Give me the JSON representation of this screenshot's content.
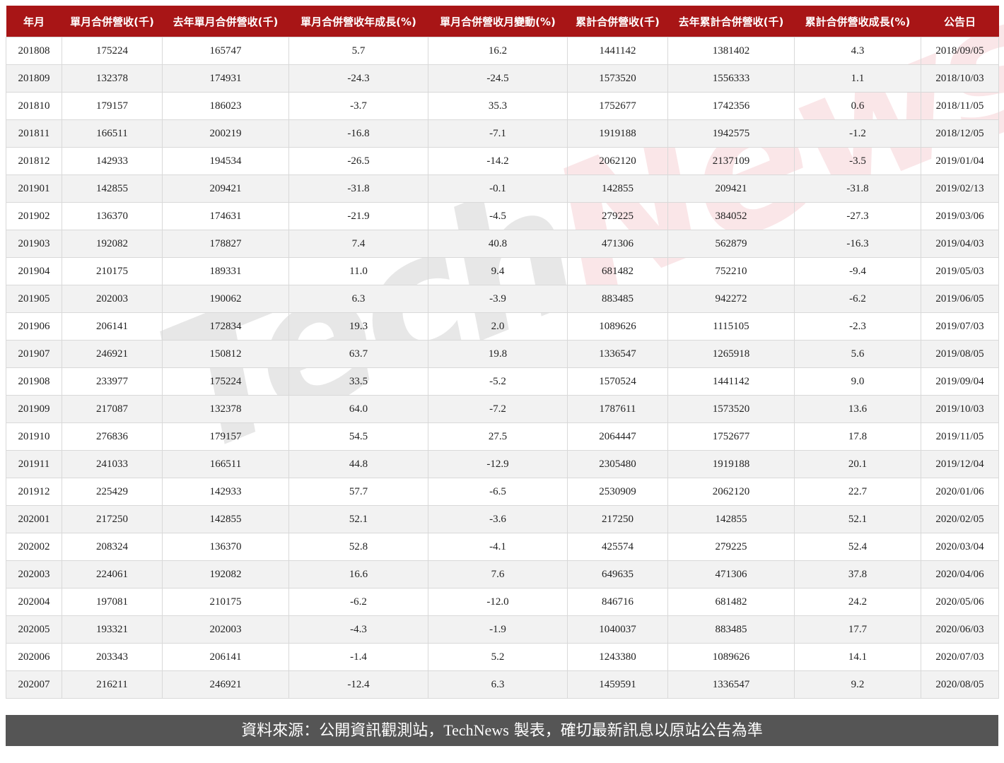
{
  "watermark": {
    "part1": "Tech",
    "part2": "News"
  },
  "chart_data": {
    "type": "table",
    "columns": [
      "年月",
      "單月合併營收(千)",
      "去年單月合併營收(千)",
      "單月合併營收年成長(%)",
      "單月合併營收月變動(%)",
      "累計合併營收(千)",
      "去年累計合併營收(千)",
      "累計合併營收成長(%)",
      "公告日"
    ],
    "rows": [
      [
        "201808",
        "175224",
        "165747",
        "5.7",
        "16.2",
        "1441142",
        "1381402",
        "4.3",
        "2018/09/05"
      ],
      [
        "201809",
        "132378",
        "174931",
        "-24.3",
        "-24.5",
        "1573520",
        "1556333",
        "1.1",
        "2018/10/03"
      ],
      [
        "201810",
        "179157",
        "186023",
        "-3.7",
        "35.3",
        "1752677",
        "1742356",
        "0.6",
        "2018/11/05"
      ],
      [
        "201811",
        "166511",
        "200219",
        "-16.8",
        "-7.1",
        "1919188",
        "1942575",
        "-1.2",
        "2018/12/05"
      ],
      [
        "201812",
        "142933",
        "194534",
        "-26.5",
        "-14.2",
        "2062120",
        "2137109",
        "-3.5",
        "2019/01/04"
      ],
      [
        "201901",
        "142855",
        "209421",
        "-31.8",
        "-0.1",
        "142855",
        "209421",
        "-31.8",
        "2019/02/13"
      ],
      [
        "201902",
        "136370",
        "174631",
        "-21.9",
        "-4.5",
        "279225",
        "384052",
        "-27.3",
        "2019/03/06"
      ],
      [
        "201903",
        "192082",
        "178827",
        "7.4",
        "40.8",
        "471306",
        "562879",
        "-16.3",
        "2019/04/03"
      ],
      [
        "201904",
        "210175",
        "189331",
        "11.0",
        "9.4",
        "681482",
        "752210",
        "-9.4",
        "2019/05/03"
      ],
      [
        "201905",
        "202003",
        "190062",
        "6.3",
        "-3.9",
        "883485",
        "942272",
        "-6.2",
        "2019/06/05"
      ],
      [
        "201906",
        "206141",
        "172834",
        "19.3",
        "2.0",
        "1089626",
        "1115105",
        "-2.3",
        "2019/07/03"
      ],
      [
        "201907",
        "246921",
        "150812",
        "63.7",
        "19.8",
        "1336547",
        "1265918",
        "5.6",
        "2019/08/05"
      ],
      [
        "201908",
        "233977",
        "175224",
        "33.5",
        "-5.2",
        "1570524",
        "1441142",
        "9.0",
        "2019/09/04"
      ],
      [
        "201909",
        "217087",
        "132378",
        "64.0",
        "-7.2",
        "1787611",
        "1573520",
        "13.6",
        "2019/10/03"
      ],
      [
        "201910",
        "276836",
        "179157",
        "54.5",
        "27.5",
        "2064447",
        "1752677",
        "17.8",
        "2019/11/05"
      ],
      [
        "201911",
        "241033",
        "166511",
        "44.8",
        "-12.9",
        "2305480",
        "1919188",
        "20.1",
        "2019/12/04"
      ],
      [
        "201912",
        "225429",
        "142933",
        "57.7",
        "-6.5",
        "2530909",
        "2062120",
        "22.7",
        "2020/01/06"
      ],
      [
        "202001",
        "217250",
        "142855",
        "52.1",
        "-3.6",
        "217250",
        "142855",
        "52.1",
        "2020/02/05"
      ],
      [
        "202002",
        "208324",
        "136370",
        "52.8",
        "-4.1",
        "425574",
        "279225",
        "52.4",
        "2020/03/04"
      ],
      [
        "202003",
        "224061",
        "192082",
        "16.6",
        "7.6",
        "649635",
        "471306",
        "37.8",
        "2020/04/06"
      ],
      [
        "202004",
        "197081",
        "210175",
        "-6.2",
        "-12.0",
        "846716",
        "681482",
        "24.2",
        "2020/05/06"
      ],
      [
        "202005",
        "193321",
        "202003",
        "-4.3",
        "-1.9",
        "1040037",
        "883485",
        "17.7",
        "2020/06/03"
      ],
      [
        "202006",
        "203343",
        "206141",
        "-1.4",
        "5.2",
        "1243380",
        "1089626",
        "14.1",
        "2020/07/03"
      ],
      [
        "202007",
        "216211",
        "246921",
        "-12.4",
        "6.3",
        "1459591",
        "1336547",
        "9.2",
        "2020/08/05"
      ]
    ],
    "header_color": "#a81516",
    "stripe_color": "#f2f2f2"
  },
  "footer": {
    "pre": "資料來源：公開資訊觀測站，",
    "brand": "TechNews",
    "post": " 製表，確切最新訊息以原站公告為準"
  }
}
